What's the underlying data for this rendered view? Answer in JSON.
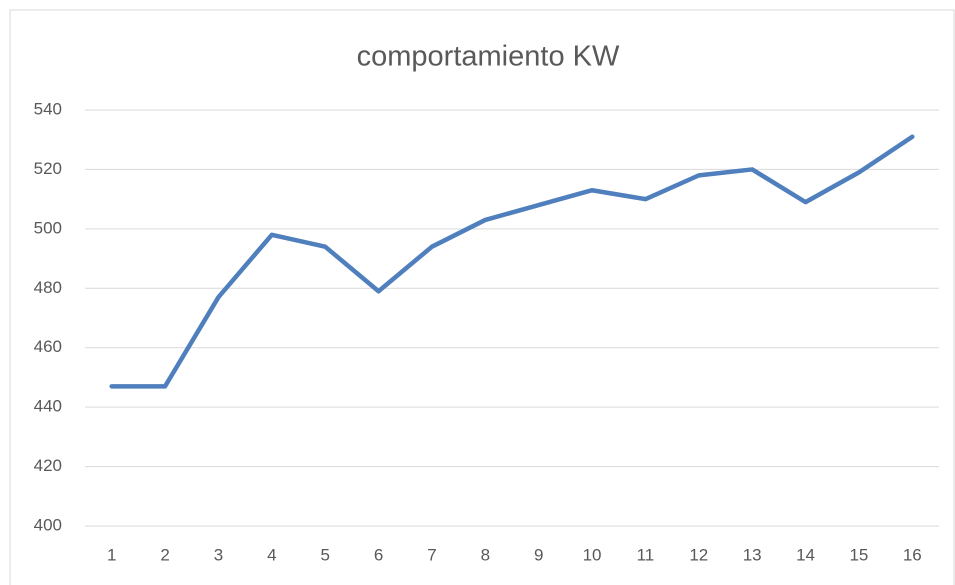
{
  "chart_data": {
    "type": "line",
    "title": "comportamiento KW",
    "categories": [
      "1",
      "2",
      "3",
      "4",
      "5",
      "6",
      "7",
      "8",
      "9",
      "10",
      "11",
      "12",
      "13",
      "14",
      "15",
      "16"
    ],
    "series": [
      {
        "name": "KW",
        "color": "#4f7fbd",
        "values": [
          447,
          447,
          477,
          498,
          494,
          479,
          494,
          503,
          508,
          513,
          510,
          518,
          520,
          509,
          519,
          531
        ]
      }
    ],
    "ylim": [
      400,
      540
    ],
    "yticks": [
      400,
      420,
      440,
      460,
      480,
      500,
      520,
      540
    ],
    "grid": true
  }
}
